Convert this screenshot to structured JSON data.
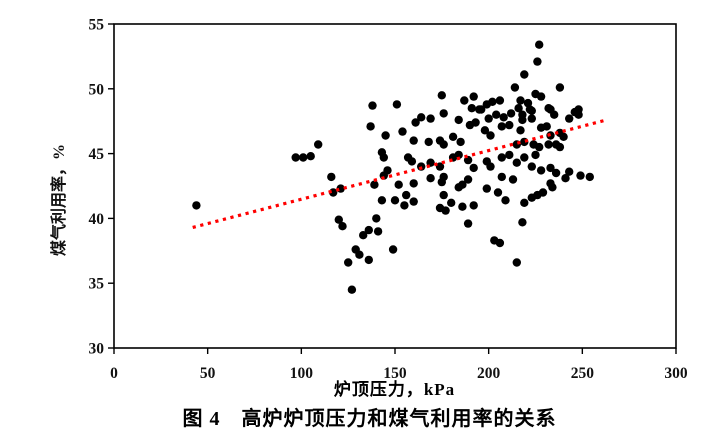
{
  "figure": {
    "caption": "图 4　高炉炉顶压力和煤气利用率的关系"
  },
  "chart_data": {
    "type": "scatter",
    "title": "",
    "xlabel": "炉顶压力，kPa",
    "ylabel": "煤气利用率，%",
    "xlim": [
      0,
      300
    ],
    "ylim": [
      30,
      55
    ],
    "xticks": [
      0,
      50,
      100,
      150,
      200,
      250,
      300
    ],
    "yticks": [
      30,
      35,
      40,
      45,
      50,
      55
    ],
    "grid": false,
    "legend": "none",
    "point_color": "#000000",
    "trendline": {
      "kind": "linear-fit",
      "style": "dotted",
      "color": "#ff0000",
      "x": [
        42,
        263
      ],
      "y": [
        39.3,
        47.6
      ]
    },
    "points": [
      [
        44,
        41
      ],
      [
        97,
        44.7
      ],
      [
        101,
        44.7
      ],
      [
        105,
        44.8
      ],
      [
        109,
        45.7
      ],
      [
        116,
        43.2
      ],
      [
        117,
        42
      ],
      [
        120,
        39.9
      ],
      [
        121,
        42.3
      ],
      [
        122,
        39.4
      ],
      [
        125,
        36.6
      ],
      [
        127,
        34.5
      ],
      [
        129,
        37.6
      ],
      [
        131,
        37.2
      ],
      [
        133,
        38.7
      ],
      [
        136,
        36.8
      ],
      [
        136,
        39.1
      ],
      [
        137,
        47.1
      ],
      [
        138,
        48.7
      ],
      [
        139,
        42.6
      ],
      [
        140,
        40
      ],
      [
        141,
        39
      ],
      [
        143,
        41.4
      ],
      [
        143,
        45.1
      ],
      [
        144,
        44.7
      ],
      [
        144,
        43.3
      ],
      [
        145,
        46.4
      ],
      [
        146,
        43.7
      ],
      [
        149,
        37.6
      ],
      [
        150,
        41.4
      ],
      [
        151,
        48.8
      ],
      [
        152,
        42.6
      ],
      [
        154,
        46.7
      ],
      [
        155,
        41
      ],
      [
        156,
        41.8
      ],
      [
        157,
        44.7
      ],
      [
        159,
        44.4
      ],
      [
        160,
        46
      ],
      [
        160,
        42.7
      ],
      [
        160,
        41.3
      ],
      [
        161,
        47.4
      ],
      [
        164,
        47.8
      ],
      [
        164,
        44
      ],
      [
        168,
        45.9
      ],
      [
        169,
        47.7
      ],
      [
        169,
        44.3
      ],
      [
        169,
        43.1
      ],
      [
        174,
        46
      ],
      [
        174,
        44
      ],
      [
        174,
        40.8
      ],
      [
        175,
        49.5
      ],
      [
        175,
        42.8
      ],
      [
        176,
        48.1
      ],
      [
        176,
        45.7
      ],
      [
        176,
        43.2
      ],
      [
        176,
        41.8
      ],
      [
        177,
        40.6
      ],
      [
        180,
        41.2
      ],
      [
        181,
        46.3
      ],
      [
        181,
        44.7
      ],
      [
        184,
        47.6
      ],
      [
        184,
        44.9
      ],
      [
        184,
        42.4
      ],
      [
        185,
        45.9
      ],
      [
        186,
        42.6
      ],
      [
        186,
        40.9
      ],
      [
        187,
        49.1
      ],
      [
        189,
        44.5
      ],
      [
        189,
        43
      ],
      [
        189,
        39.6
      ],
      [
        190,
        47.2
      ],
      [
        191,
        48.5
      ],
      [
        192,
        49.4
      ],
      [
        192,
        43.9
      ],
      [
        192,
        41
      ],
      [
        193,
        47.4
      ],
      [
        195,
        48.4
      ],
      [
        196,
        48.4
      ],
      [
        198,
        46.8
      ],
      [
        199,
        48.8
      ],
      [
        199,
        44.4
      ],
      [
        199,
        42.3
      ],
      [
        200,
        47.7
      ],
      [
        201,
        46.4
      ],
      [
        201,
        44
      ],
      [
        202,
        49
      ],
      [
        203,
        38.3
      ],
      [
        204,
        48
      ],
      [
        205,
        42
      ],
      [
        206,
        49.1
      ],
      [
        206,
        38.1
      ],
      [
        207,
        47.1
      ],
      [
        207,
        44.7
      ],
      [
        207,
        43.2
      ],
      [
        208,
        47.8
      ],
      [
        209,
        41.4
      ],
      [
        211,
        47.2
      ],
      [
        211,
        44.9
      ],
      [
        212,
        48.1
      ],
      [
        213,
        43
      ],
      [
        214,
        50.1
      ],
      [
        215,
        45.7
      ],
      [
        215,
        44.3
      ],
      [
        215,
        36.6
      ],
      [
        216,
        48.5
      ],
      [
        217,
        49.1
      ],
      [
        217,
        46.8
      ],
      [
        218,
        48
      ],
      [
        218,
        47.6
      ],
      [
        218,
        39.7
      ],
      [
        219,
        51.1
      ],
      [
        219,
        45.9
      ],
      [
        219,
        44.7
      ],
      [
        219,
        41.2
      ],
      [
        221,
        48.9
      ],
      [
        222,
        48.4
      ],
      [
        223,
        48.3
      ],
      [
        223,
        47.7
      ],
      [
        223,
        44
      ],
      [
        223,
        41.6
      ],
      [
        224,
        45.7
      ],
      [
        225,
        49.6
      ],
      [
        225,
        44.9
      ],
      [
        226,
        52.1
      ],
      [
        226,
        41.8
      ],
      [
        227,
        53.4
      ],
      [
        227,
        45.5
      ],
      [
        228,
        49.4
      ],
      [
        228,
        47
      ],
      [
        228,
        43.7
      ],
      [
        229,
        42
      ],
      [
        231,
        47.1
      ],
      [
        232,
        48.5
      ],
      [
        232,
        45.7
      ],
      [
        233,
        48.4
      ],
      [
        233,
        46.4
      ],
      [
        233,
        43.9
      ],
      [
        233,
        42.7
      ],
      [
        234,
        42.4
      ],
      [
        235,
        48
      ],
      [
        236,
        45.7
      ],
      [
        236,
        43.5
      ],
      [
        238,
        50.1
      ],
      [
        238,
        46.6
      ],
      [
        238,
        45.5
      ],
      [
        240,
        46.3
      ],
      [
        241,
        43.1
      ],
      [
        243,
        47.7
      ],
      [
        243,
        43.6
      ],
      [
        246,
        48.2
      ],
      [
        248,
        48.4
      ],
      [
        248,
        48
      ],
      [
        249,
        43.3
      ],
      [
        254,
        43.2
      ]
    ]
  }
}
